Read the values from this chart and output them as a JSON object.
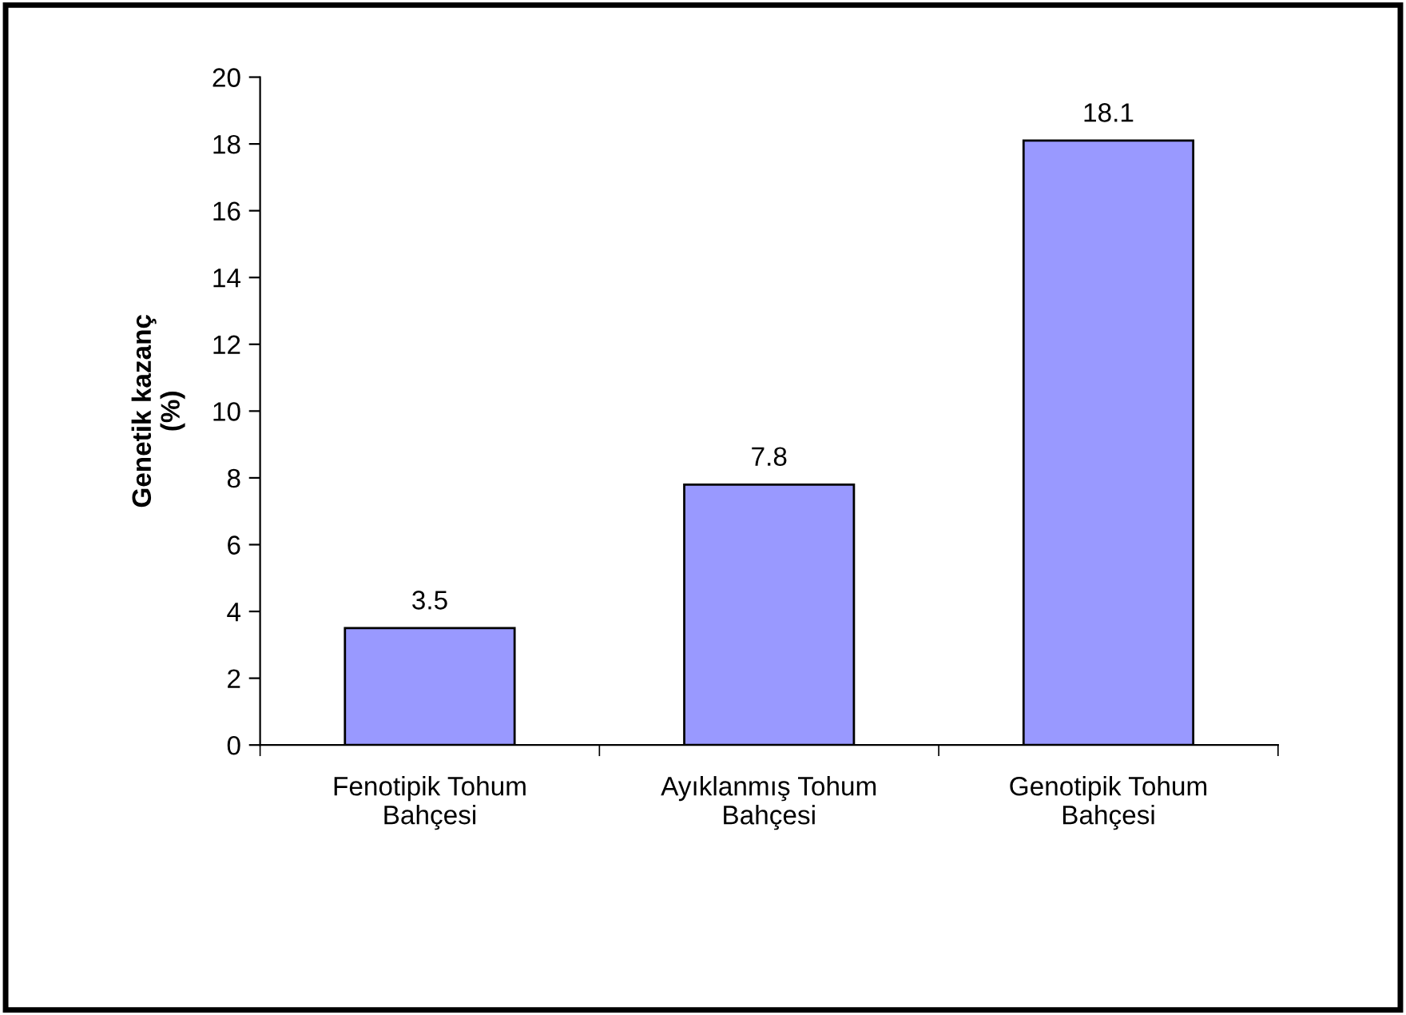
{
  "chart_data": {
    "type": "bar",
    "ylabel": "Genetik kazanç\n(%)",
    "categories": [
      "Fenotipik Tohum\nBahçesi",
      "Ayıklanmış Tohum\nBahçesi",
      "Genotipik Tohum\nBahçesi"
    ],
    "values": [
      3.5,
      7.8,
      18.1
    ],
    "color": "#9999ff",
    "ylim": [
      0,
      20
    ],
    "yticks": [
      0,
      2,
      4,
      6,
      8,
      10,
      12,
      14,
      16,
      18,
      20
    ],
    "grid": false,
    "data_labels": true,
    "legend": false
  }
}
